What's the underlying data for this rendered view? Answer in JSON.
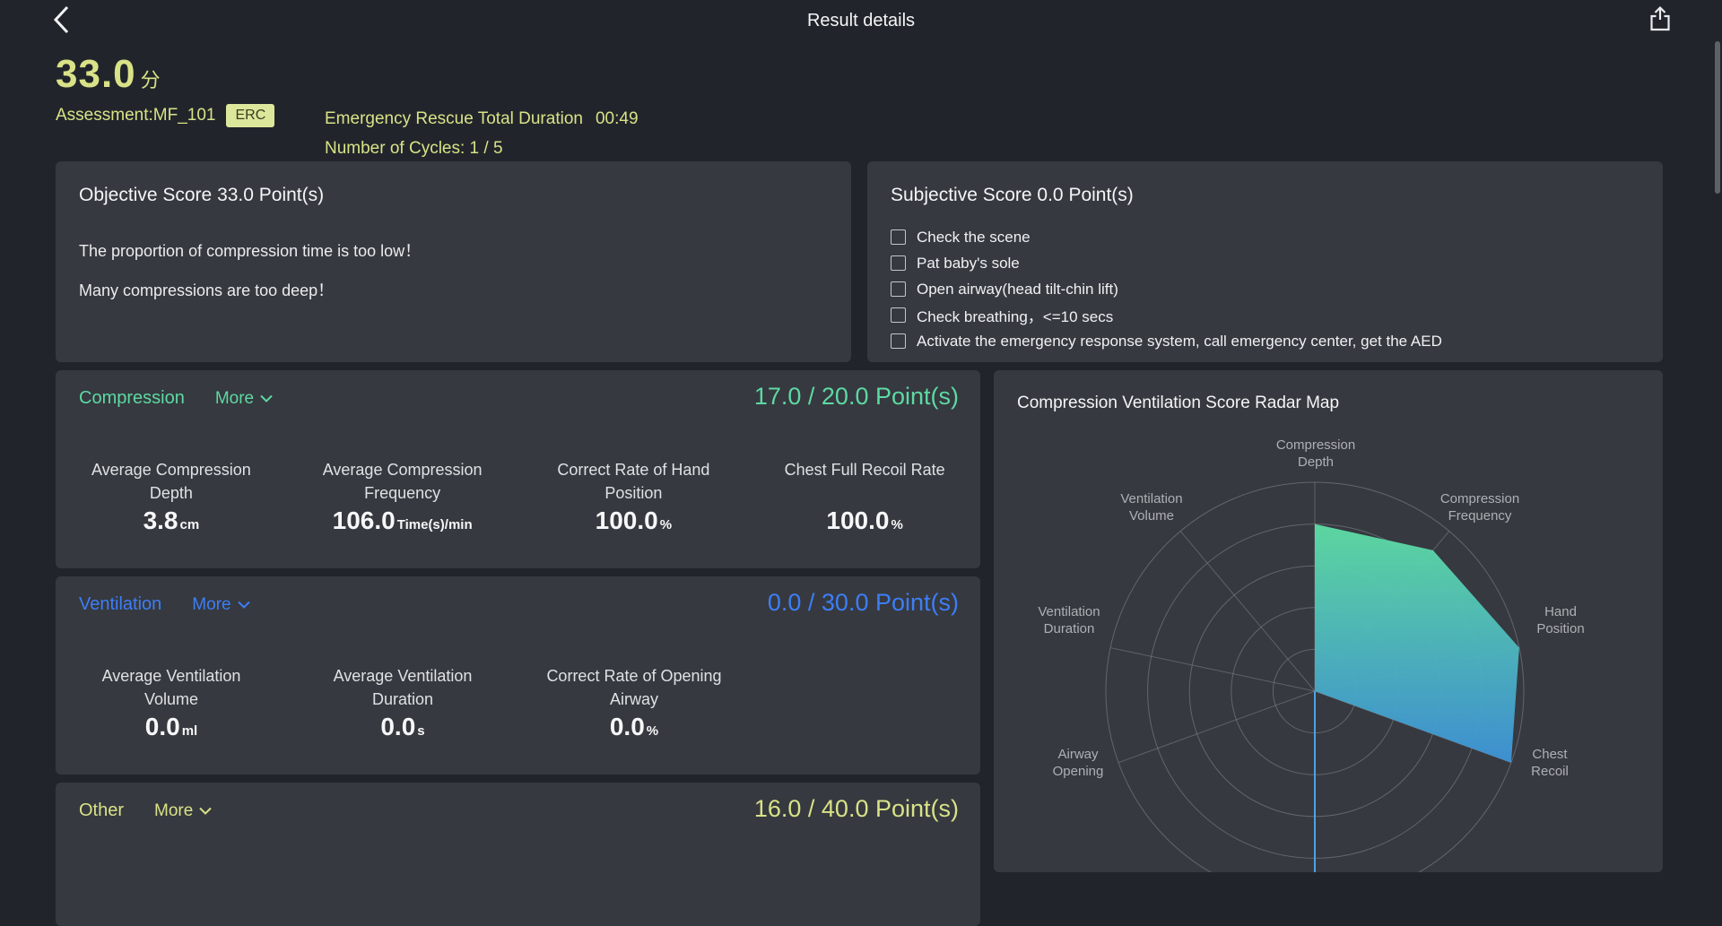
{
  "header": {
    "title": "Result details"
  },
  "summary": {
    "score": "33.0",
    "score_unit": "分",
    "assessment": "Assessment:MF_101",
    "badge": "ERC",
    "duration_label": "Emergency Rescue Total Duration",
    "duration_value": "00:49",
    "cycles": "Number of Cycles: 1 / 5"
  },
  "objective": {
    "title": "Objective Score 33.0  Point(s)",
    "messages": [
      "The proportion of compression time is too low！",
      "Many compressions are too deep！"
    ]
  },
  "subjective": {
    "title": "Subjective Score 0.0  Point(s)",
    "items": [
      "Check the scene",
      "Pat baby's sole",
      "Open airway(head tilt-chin lift)",
      "Check breathing，<=10 secs",
      "Activate the emergency response system, call emergency center, get the AED"
    ]
  },
  "compression": {
    "name": "Compression",
    "more": "More",
    "score_text": "17.0 / 20.0 Point(s)",
    "accent": "#5dd9a3",
    "stats": [
      {
        "line1": "Average Compression",
        "line2": "Depth",
        "value": "3.8",
        "unit": "cm"
      },
      {
        "line1": "Average Compression",
        "line2": "Frequency",
        "value": "106.0",
        "unit": "Time(s)/min"
      },
      {
        "line1": "Correct Rate of Hand",
        "line2": "Position",
        "value": "100.0",
        "unit": "%"
      },
      {
        "line1": "Chest Full Recoil Rate",
        "line2": "",
        "value": "100.0",
        "unit": "%"
      }
    ]
  },
  "ventilation": {
    "name": "Ventilation",
    "more": "More",
    "score_text": "0.0 / 30.0 Point(s)",
    "accent": "#3d7ef7",
    "stats": [
      {
        "line1": "Average Ventilation",
        "line2": "Volume",
        "value": "0.0",
        "unit": "ml"
      },
      {
        "line1": "Average Ventilation",
        "line2": "Duration",
        "value": "0.0",
        "unit": "s"
      },
      {
        "line1": "Correct Rate of Opening",
        "line2": "Airway",
        "value": "0.0",
        "unit": "%"
      }
    ]
  },
  "other": {
    "name": "Other",
    "more": "More",
    "score_text": "16.0 / 40.0 Point(s)",
    "accent": "#d9e287"
  },
  "radar": {
    "title": "Compression Ventilation Score Radar Map",
    "axis_labels": [
      {
        "line1": "Compression",
        "line2": "Depth"
      },
      {
        "line1": "Compression",
        "line2": "Frequency"
      },
      {
        "line1": "Hand",
        "line2": "Position"
      },
      {
        "line1": "Chest",
        "line2": "Recoil"
      },
      {
        "line1": "Airway",
        "line2": "Opening"
      },
      {
        "line1": "Ventilation",
        "line2": "Duration"
      },
      {
        "line1": "Ventilation",
        "line2": "Volume"
      }
    ]
  },
  "chart_data": {
    "type": "radar",
    "title": "Compression Ventilation Score Radar Map",
    "axes": [
      "Compression Depth",
      "Compression Frequency",
      "Hand Position",
      "Chest Recoil",
      "Airway Opening",
      "Ventilation Duration",
      "Ventilation Volume"
    ],
    "values": [
      80,
      88,
      100,
      100,
      0,
      0,
      0
    ],
    "max": 100,
    "rings": 5,
    "grid_color": "#81858b",
    "zero_axis_color": "#4da3e8",
    "gradient": [
      "#5edea4",
      "#3e93d8"
    ],
    "legend": false
  },
  "colors": {
    "page_bg": "#21252b",
    "panel_bg": "#36393f",
    "accent_yellow": "#d9e287",
    "accent_green": "#5dd9a3",
    "accent_blue": "#3d7ef7"
  }
}
